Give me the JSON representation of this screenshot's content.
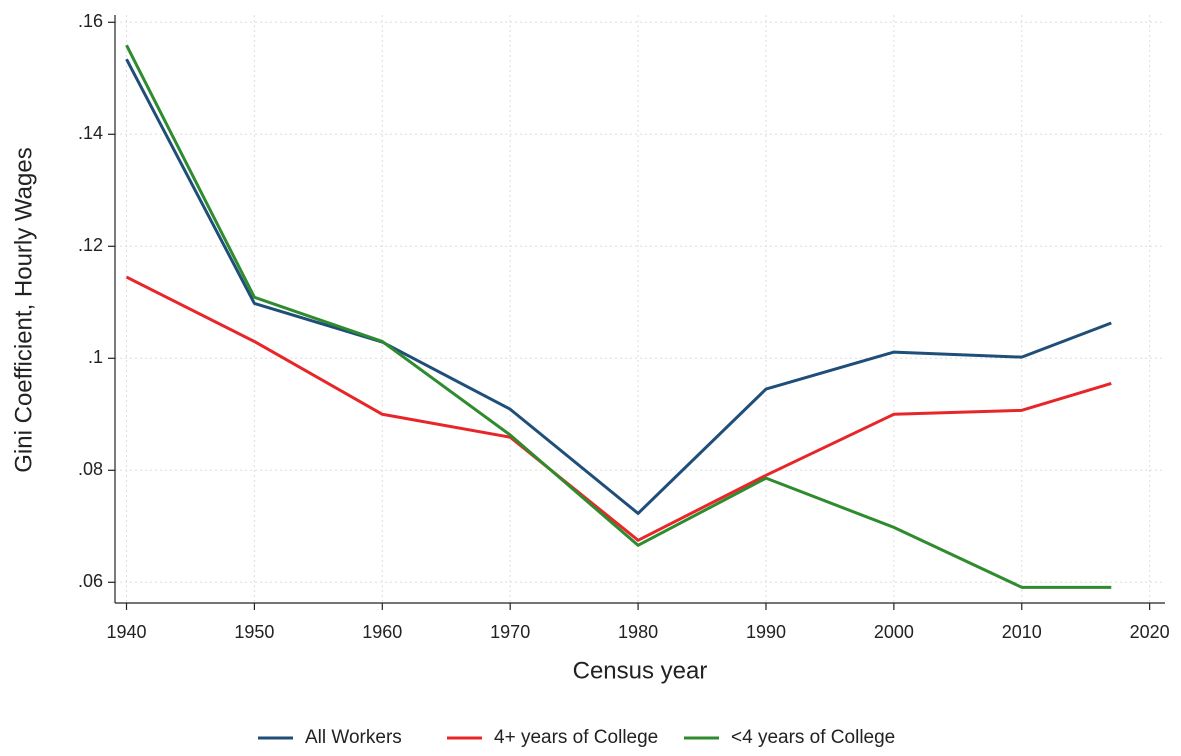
{
  "chart_data": {
    "type": "line",
    "x_label": "Census year",
    "y_label": "Gini Coefficient, Hourly Wages",
    "x": [
      1940,
      1950,
      1960,
      1970,
      1980,
      1990,
      2000,
      2010,
      2017
    ],
    "series": [
      {
        "name": "All Workers",
        "color": "#1f4e79",
        "values": [
          0.1534,
          0.1098,
          0.1029,
          0.0909,
          0.0723,
          0.0945,
          0.1011,
          0.1002,
          0.1063
        ]
      },
      {
        "name": "4+ years of College",
        "color": "#e8262a",
        "values": [
          0.1145,
          0.103,
          0.09,
          0.0859,
          0.0675,
          0.0791,
          0.09,
          0.0907,
          0.0955
        ]
      },
      {
        "name": "<4 years of College",
        "color": "#2e8b2e",
        "values": [
          0.1559,
          0.1109,
          0.103,
          0.0863,
          0.0666,
          0.0786,
          0.0698,
          0.0591,
          0.0591
        ]
      }
    ],
    "xlim": [
      1939.1,
      2021.2
    ],
    "xticks": [
      1940,
      1950,
      1960,
      1970,
      1980,
      1990,
      2000,
      2010,
      2020
    ],
    "ylim": [
      0.0563,
      0.1613
    ],
    "yticks": [
      {
        "value": 0.06,
        "label": ".06"
      },
      {
        "value": 0.08,
        "label": ".08"
      },
      {
        "value": 0.1,
        "label": ".1"
      },
      {
        "value": 0.12,
        "label": ".12"
      },
      {
        "value": 0.14,
        "label": ".14"
      },
      {
        "value": 0.16,
        "label": ".16"
      }
    ],
    "grid": true,
    "legend": "bottom"
  }
}
